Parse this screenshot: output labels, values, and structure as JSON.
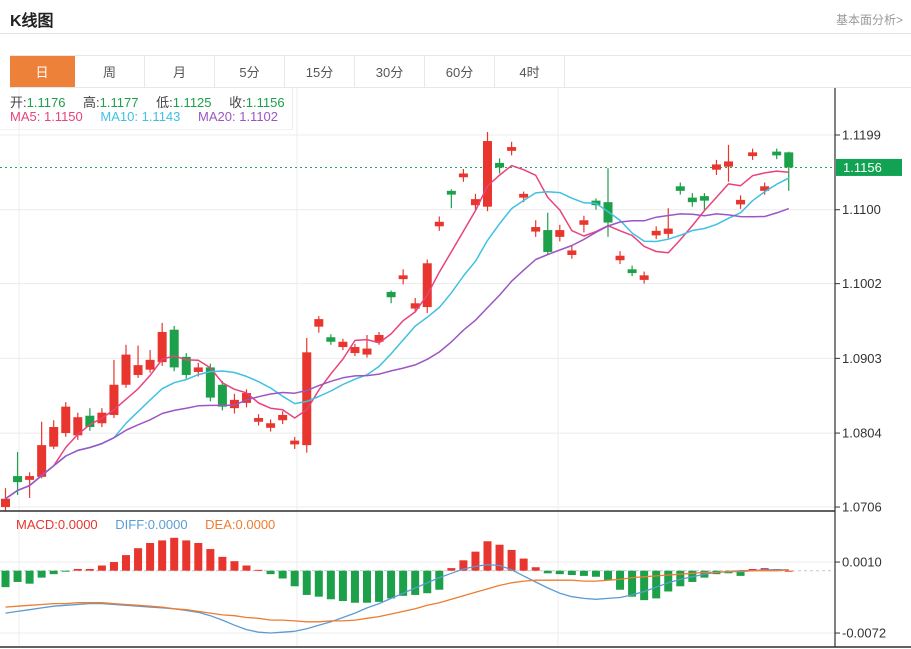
{
  "header": {
    "title": "K线图",
    "link": "基本面分析>"
  },
  "tabs": {
    "items": [
      "日",
      "周",
      "月",
      "5分",
      "15分",
      "30分",
      "60分",
      "4时"
    ],
    "active_index": 0
  },
  "ohlc_legend": {
    "open_label": "开:",
    "open": "1.1176",
    "high_label": "高:",
    "high": "1.1177",
    "low_label": "低:",
    "low": "1.1125",
    "close_label": "收:",
    "close": "1.1156"
  },
  "ma_legend": {
    "ma5_label": "MA5:",
    "ma5": "1.1150",
    "ma10_label": "MA10:",
    "ma10": "1.1143",
    "ma20_label": "MA20:",
    "ma20": "1.1102"
  },
  "macd_legend": {
    "macd_label": "MACD:",
    "macd": "0.0000",
    "diff_label": "DIFF:",
    "diff": "0.0000",
    "dea_label": "DEA:",
    "dea": "0.0000"
  },
  "colors": {
    "up": "#e8352e",
    "down": "#1ca049",
    "ma5": "#e8437c",
    "ma10": "#3fc1e3",
    "ma20": "#9c56c4",
    "diff_line": "#5b9bd5",
    "dea_line": "#ed7d31",
    "tab_active_bg": "#ee8139",
    "last_price_bg": "#12a254",
    "last_price_line": "#22a556",
    "grid": "#ececec",
    "axis_line": "#2f2f2f",
    "axis_text": "#333333",
    "macd_zero_line": "#c8c8c8"
  },
  "chart_data": {
    "type": "candlestick",
    "title": "K线图 (日K)",
    "panels": [
      "price",
      "macd"
    ],
    "legend_position": "top-left",
    "grid": true,
    "price_axis_ticks": [
      1.1199,
      1.11,
      1.1002,
      1.0903,
      1.0804,
      1.0706
    ],
    "ylim": [
      1.0695,
      1.121
    ],
    "last_price": 1.1156,
    "ma_periods": [
      5,
      10,
      20
    ],
    "candles_format": [
      "open",
      "high",
      "low",
      "close"
    ],
    "candles": [
      [
        1.0706,
        1.0731,
        1.0701,
        1.0717
      ],
      [
        1.0747,
        1.0779,
        1.0722,
        1.0739
      ],
      [
        1.0742,
        1.0752,
        1.0718,
        1.0747
      ],
      [
        1.0746,
        1.0819,
        1.0744,
        1.0788
      ],
      [
        1.0786,
        1.0821,
        1.0783,
        1.0812
      ],
      [
        1.0804,
        1.0845,
        1.0799,
        1.0839
      ],
      [
        1.0801,
        1.0831,
        1.0795,
        1.0825
      ],
      [
        1.0827,
        1.0837,
        1.0807,
        1.0812
      ],
      [
        1.0817,
        1.0837,
        1.0812,
        1.0831
      ],
      [
        1.0828,
        1.0901,
        1.0824,
        1.0868
      ],
      [
        1.0868,
        1.0921,
        1.0864,
        1.0908
      ],
      [
        1.0881,
        1.092,
        1.0877,
        1.0894
      ],
      [
        1.0888,
        1.0914,
        1.0884,
        1.0901
      ],
      [
        1.0898,
        1.095,
        1.0893,
        1.0938
      ],
      [
        1.0941,
        1.0946,
        1.0886,
        1.0891
      ],
      [
        1.0905,
        1.091,
        1.0876,
        1.0881
      ],
      [
        1.0885,
        1.0897,
        1.0879,
        1.0891
      ],
      [
        1.0891,
        1.0896,
        1.0846,
        1.0851
      ],
      [
        1.0868,
        1.0873,
        1.0834,
        1.0839
      ],
      [
        1.0837,
        1.0856,
        1.083,
        1.0848
      ],
      [
        1.0844,
        1.0862,
        1.0838,
        1.0857
      ],
      [
        1.0819,
        1.0829,
        1.0814,
        1.0824
      ],
      [
        1.0811,
        1.0822,
        1.0806,
        1.0817
      ],
      [
        1.0821,
        1.0833,
        1.0816,
        1.0828
      ],
      [
        1.0789,
        1.0799,
        1.0783,
        1.0794
      ],
      [
        1.0788,
        1.093,
        1.0778,
        1.0911
      ],
      [
        1.0945,
        1.0959,
        1.0937,
        1.0955
      ],
      [
        1.0931,
        1.0935,
        1.0921,
        1.0925
      ],
      [
        1.0918,
        1.0929,
        1.0914,
        1.0925
      ],
      [
        1.091,
        1.0922,
        1.0906,
        1.0918
      ],
      [
        1.0908,
        1.0934,
        1.0904,
        1.0916
      ],
      [
        1.0925,
        1.0938,
        1.0921,
        1.0934
      ],
      [
        1.0991,
        1.0993,
        1.0976,
        1.0984
      ],
      [
        1.1008,
        1.1021,
        1.1001,
        1.1013
      ],
      [
        1.0969,
        1.0983,
        1.0964,
        1.0976
      ],
      [
        1.0971,
        1.1034,
        1.0963,
        1.1029
      ],
      [
        1.1078,
        1.1091,
        1.1072,
        1.1084
      ],
      [
        1.1125,
        1.1127,
        1.1102,
        1.112
      ],
      [
        1.1143,
        1.1154,
        1.1137,
        1.1148
      ],
      [
        1.1106,
        1.1121,
        1.11,
        1.1114
      ],
      [
        1.1104,
        1.1203,
        1.1098,
        1.1191
      ],
      [
        1.1162,
        1.1168,
        1.1148,
        1.1156
      ],
      [
        1.1178,
        1.119,
        1.1172,
        1.1183
      ],
      [
        1.1116,
        1.1124,
        1.111,
        1.1121
      ],
      [
        1.1071,
        1.1086,
        1.1064,
        1.1077
      ],
      [
        1.1073,
        1.1096,
        1.104,
        1.1044
      ],
      [
        1.1064,
        1.108,
        1.1058,
        1.1073
      ],
      [
        1.104,
        1.1053,
        1.1035,
        1.1046
      ],
      [
        1.108,
        1.1092,
        1.107,
        1.1086
      ],
      [
        1.1112,
        1.1115,
        1.11,
        1.1106
      ],
      [
        1.111,
        1.1155,
        1.1064,
        1.1083
      ],
      [
        1.1033,
        1.1045,
        1.1028,
        1.1039
      ],
      [
        1.1021,
        1.1026,
        1.1012,
        1.1016
      ],
      [
        1.1007,
        1.1018,
        1.1002,
        1.1013
      ],
      [
        1.1066,
        1.1078,
        1.1061,
        1.1072
      ],
      [
        1.1068,
        1.1102,
        1.1062,
        1.1075
      ],
      [
        1.1131,
        1.1136,
        1.112,
        1.1125
      ],
      [
        1.1116,
        1.1122,
        1.1104,
        1.111
      ],
      [
        1.1118,
        1.1122,
        1.11,
        1.1112
      ],
      [
        1.1153,
        1.1166,
        1.1146,
        1.116
      ],
      [
        1.1157,
        1.1186,
        1.1137,
        1.1164
      ],
      [
        1.1107,
        1.1119,
        1.1101,
        1.1113
      ],
      [
        1.1171,
        1.1181,
        1.1166,
        1.1176
      ],
      [
        1.1125,
        1.1136,
        1.112,
        1.1131
      ],
      [
        1.1177,
        1.1181,
        1.1167,
        1.1172
      ],
      [
        1.1176,
        1.1177,
        1.1125,
        1.1156
      ]
    ],
    "macd": {
      "axis_ticks": [
        0.001,
        -0.0072
      ],
      "hist": [
        -0.0019,
        -0.0013,
        -0.0015,
        -0.0008,
        -0.0004,
        -0.0001,
        0.0002,
        0.0002,
        0.0006,
        0.001,
        0.0018,
        0.0026,
        0.0032,
        0.0035,
        0.0038,
        0.0035,
        0.0032,
        0.0025,
        0.0016,
        0.0011,
        0.0006,
        0.0001,
        -0.0004,
        -0.0009,
        -0.0018,
        -0.0028,
        -0.003,
        -0.0033,
        -0.0035,
        -0.0037,
        -0.0037,
        -0.0036,
        -0.0032,
        -0.0029,
        -0.0028,
        -0.0026,
        -0.0022,
        0.0003,
        0.0012,
        0.0022,
        0.0034,
        0.003,
        0.0024,
        0.0014,
        0.0004,
        -0.0003,
        -0.0004,
        -0.0005,
        -0.0006,
        -0.0007,
        -0.0011,
        -0.0022,
        -0.003,
        -0.0034,
        -0.0032,
        -0.0024,
        -0.0018,
        -0.0013,
        -0.0008,
        -0.0004,
        -0.0003,
        -0.0006,
        0.0002,
        0.0003,
        0.0002,
        0.0
      ],
      "diff": [
        -0.0049,
        -0.0047,
        -0.0045,
        -0.0043,
        -0.0041,
        -0.004,
        -0.0039,
        -0.0038,
        -0.0038,
        -0.0039,
        -0.004,
        -0.0041,
        -0.0042,
        -0.0043,
        -0.0044,
        -0.0046,
        -0.0048,
        -0.0052,
        -0.0057,
        -0.0063,
        -0.0068,
        -0.0071,
        -0.0072,
        -0.0071,
        -0.007,
        -0.0067,
        -0.0063,
        -0.0059,
        -0.0054,
        -0.0049,
        -0.0043,
        -0.0038,
        -0.0032,
        -0.0026,
        -0.002,
        -0.0014,
        -0.0008,
        -0.0003,
        0.0002,
        0.0005,
        0.0007,
        0.0006,
        0.0001,
        -0.0006,
        -0.0013,
        -0.002,
        -0.0026,
        -0.003,
        -0.0032,
        -0.0033,
        -0.0032,
        -0.0031,
        -0.0028,
        -0.0024,
        -0.0019,
        -0.0014,
        -0.001,
        -0.0007,
        -0.0004,
        -0.0002,
        -0.0001,
        0.0,
        0.0,
        0.0001,
        0.0001,
        0.0001
      ],
      "dea": [
        -0.0042,
        -0.0041,
        -0.004,
        -0.0039,
        -0.0038,
        -0.0038,
        -0.0037,
        -0.0037,
        -0.0037,
        -0.0038,
        -0.0039,
        -0.004,
        -0.0041,
        -0.0042,
        -0.0044,
        -0.0045,
        -0.0047,
        -0.0049,
        -0.0051,
        -0.0052,
        -0.0054,
        -0.0055,
        -0.0057,
        -0.0057,
        -0.0058,
        -0.0059,
        -0.0059,
        -0.0058,
        -0.0058,
        -0.0057,
        -0.0055,
        -0.0053,
        -0.005,
        -0.0047,
        -0.0044,
        -0.004,
        -0.0037,
        -0.0033,
        -0.0029,
        -0.0025,
        -0.0021,
        -0.0017,
        -0.0014,
        -0.0012,
        -0.0011,
        -0.0011,
        -0.0011,
        -0.0011,
        -0.0012,
        -0.0012,
        -0.0011,
        -0.001,
        -0.0008,
        -0.0007,
        -0.0006,
        -0.0005,
        -0.0004,
        -0.0003,
        -0.0002,
        -0.0002,
        -0.0001,
        -0.0001,
        0.0,
        0.0,
        0.0,
        0.0001
      ]
    }
  }
}
